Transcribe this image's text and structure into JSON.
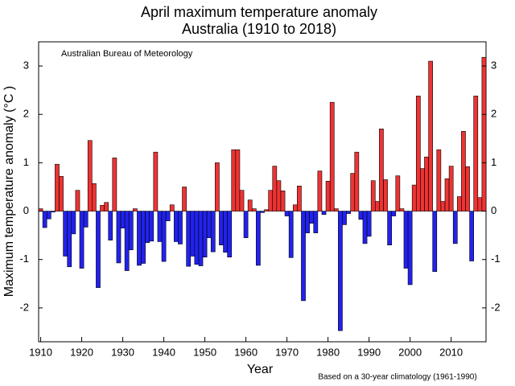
{
  "chart_data": {
    "type": "bar",
    "title": "April maximum temperature anomaly",
    "subtitle": "Australia (1910 to 2018)",
    "annotation": "Australian Bureau of Meteorology",
    "footnote": "Based on a 30-year climatology (1961-1990)",
    "xlabel": "Year",
    "ylabel": "Maximum temperature anomaly (°C )",
    "x": [
      1910,
      1911,
      1912,
      1913,
      1914,
      1915,
      1916,
      1917,
      1918,
      1919,
      1920,
      1921,
      1922,
      1923,
      1924,
      1925,
      1926,
      1927,
      1928,
      1929,
      1930,
      1931,
      1932,
      1933,
      1934,
      1935,
      1936,
      1937,
      1938,
      1939,
      1940,
      1941,
      1942,
      1943,
      1944,
      1945,
      1946,
      1947,
      1948,
      1949,
      1950,
      1951,
      1952,
      1953,
      1954,
      1955,
      1956,
      1957,
      1958,
      1959,
      1960,
      1961,
      1962,
      1963,
      1964,
      1965,
      1966,
      1967,
      1968,
      1969,
      1970,
      1971,
      1972,
      1973,
      1974,
      1975,
      1976,
      1977,
      1978,
      1979,
      1980,
      1981,
      1982,
      1983,
      1984,
      1985,
      1986,
      1987,
      1988,
      1989,
      1990,
      1991,
      1992,
      1993,
      1994,
      1995,
      1996,
      1997,
      1998,
      1999,
      2000,
      2001,
      2002,
      2003,
      2004,
      2005,
      2006,
      2007,
      2008,
      2009,
      2010,
      2011,
      2012,
      2013,
      2014,
      2015,
      2016,
      2017,
      2018
    ],
    "values": [
      0.05,
      -0.34,
      -0.16,
      -0.02,
      0.97,
      0.72,
      -0.93,
      -1.15,
      -0.47,
      0.43,
      -1.18,
      -0.33,
      1.46,
      0.57,
      -1.58,
      0.12,
      0.18,
      -0.6,
      1.1,
      -1.07,
      -0.35,
      -1.23,
      -0.8,
      0.05,
      -1.12,
      -1.08,
      -0.65,
      -0.62,
      1.22,
      -0.63,
      -1.04,
      -0.2,
      0.13,
      -0.63,
      -0.68,
      0.5,
      -1.14,
      -0.93,
      -1.1,
      -1.13,
      -0.95,
      -0.55,
      -0.84,
      1.0,
      -0.7,
      -0.85,
      -0.95,
      1.27,
      1.27,
      0.43,
      -0.55,
      0.23,
      0.05,
      -1.12,
      -0.03,
      0.03,
      0.43,
      0.93,
      0.63,
      0.42,
      -0.1,
      -0.96,
      0.13,
      0.52,
      -1.85,
      -0.45,
      -0.25,
      -0.45,
      0.83,
      -0.07,
      0.62,
      2.25,
      0.05,
      -2.47,
      -0.28,
      -0.05,
      0.78,
      1.22,
      -0.17,
      -0.67,
      -0.52,
      0.63,
      0.2,
      1.7,
      0.65,
      -0.7,
      -0.1,
      0.73,
      0.05,
      -1.18,
      -1.52,
      0.54,
      2.38,
      0.88,
      1.12,
      3.1,
      -1.25,
      1.27,
      0.2,
      0.67,
      0.93,
      -0.67,
      0.3,
      1.65,
      0.92,
      -1.03,
      2.38,
      0.28,
      3.18
    ],
    "positive_color": "#ee3333",
    "negative_color": "#2222ee",
    "xlim": [
      1909.5,
      2018.5
    ],
    "xticks": [
      1910,
      1920,
      1930,
      1940,
      1950,
      1960,
      1970,
      1980,
      1990,
      2000,
      2010
    ],
    "ylim": [
      -2.7,
      3.5
    ],
    "yticks": [
      -2,
      -1,
      0,
      1,
      2,
      3
    ],
    "right_axis_ticks": true
  }
}
